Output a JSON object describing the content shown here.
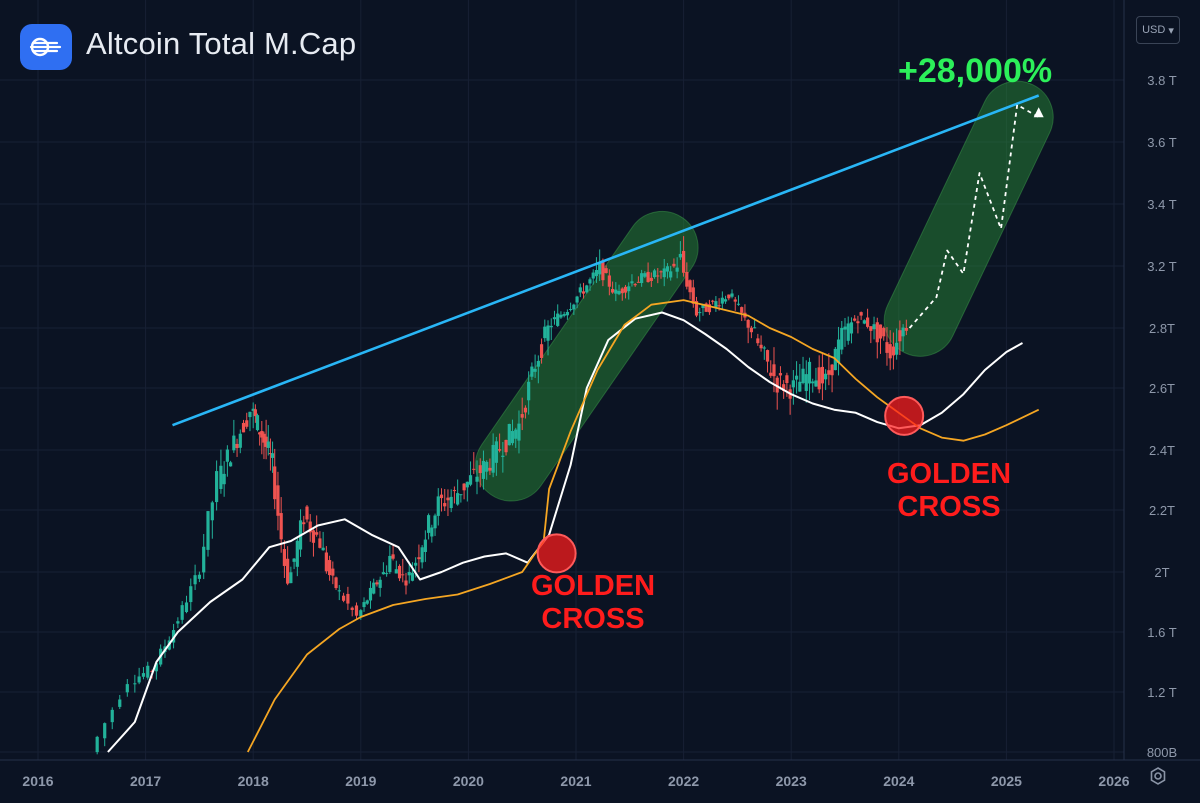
{
  "header": {
    "title": "Altcoin Total M.Cap",
    "currency": "USD",
    "logo_icon": "signal-lines-icon",
    "settings_icon": "gear-icon"
  },
  "chart_data": {
    "type": "candlestick",
    "title": "Altcoin Total M.Cap",
    "xlabel": "",
    "ylabel": "",
    "x_range": [
      2016.0,
      2026.4
    ],
    "x_ticks": [
      "2016",
      "2017",
      "2018",
      "2019",
      "2020",
      "2021",
      "2022",
      "2023",
      "2024",
      "2025",
      "2026"
    ],
    "x_tick_values": [
      2016,
      2017,
      2018,
      2019,
      2020,
      2021,
      2022,
      2023,
      2024,
      2025,
      2026
    ],
    "y_ticks": [
      "3.8 T",
      "3.6 T",
      "3.4 T",
      "3.2 T",
      "2.8T",
      "2.6T",
      "2.4T",
      "2.2T",
      "2T",
      "1.6 T",
      "1.2 T",
      "800B"
    ],
    "y_tick_values": [
      3.8,
      3.6,
      3.4,
      3.2,
      2.8,
      2.6,
      2.4,
      2.2,
      2.0,
      1.6,
      1.2,
      0.8
    ],
    "colors": {
      "up": "#22b29a",
      "down": "#ef5350",
      "ma_fast": "#ffffff",
      "ma_slow": "#f5a623",
      "trendline": "#29b6f6",
      "channel": "#2e9e3a",
      "projection": "#ffffff",
      "golden_cross": "#ff1c1c",
      "gain": "#2cf05a"
    },
    "series": [
      {
        "name": "Altcoin Total M.Cap",
        "type": "candles",
        "x": [
          2016.55,
          2016.9,
          2017.1,
          2017.3,
          2017.5,
          2017.7,
          2017.85,
          2018.0,
          2018.1,
          2018.2,
          2018.35,
          2018.5,
          2018.65,
          2018.8,
          2019.0,
          2019.15,
          2019.3,
          2019.45,
          2019.6,
          2019.75,
          2019.9,
          2020.05,
          2020.2,
          2020.35,
          2020.5,
          2020.65,
          2020.8,
          2020.95,
          2021.1,
          2021.25,
          2021.4,
          2021.55,
          2021.7,
          2021.85,
          2022.0,
          2022.15,
          2022.3,
          2022.45,
          2022.6,
          2022.75,
          2022.9,
          2023.05,
          2023.2,
          2023.35,
          2023.5,
          2023.65,
          2023.8,
          2023.95,
          2024.1
        ],
        "values": [
          0.8,
          1.28,
          1.35,
          1.62,
          1.95,
          2.3,
          2.42,
          2.53,
          2.45,
          2.35,
          1.95,
          2.18,
          2.1,
          1.9,
          1.7,
          1.9,
          2.05,
          1.95,
          2.1,
          2.22,
          2.25,
          2.3,
          2.35,
          2.42,
          2.48,
          2.68,
          2.83,
          2.93,
          3.05,
          3.18,
          3.02,
          3.1,
          3.13,
          3.15,
          3.22,
          2.9,
          2.95,
          3.02,
          2.85,
          2.72,
          2.62,
          2.6,
          2.65,
          2.62,
          2.77,
          2.87,
          2.8,
          2.72,
          2.82
        ]
      },
      {
        "name": "Moving average (white)",
        "type": "line",
        "x": [
          2016.65,
          2016.9,
          2017.1,
          2017.3,
          2017.6,
          2017.9,
          2018.15,
          2018.35,
          2018.6,
          2018.85,
          2019.1,
          2019.35,
          2019.55,
          2019.75,
          2019.95,
          2020.15,
          2020.35,
          2020.55,
          2020.75,
          2020.95,
          2021.1,
          2021.3,
          2021.55,
          2021.8,
          2022.0,
          2022.2,
          2022.4,
          2022.6,
          2022.8,
          2023.0,
          2023.2,
          2023.4,
          2023.6,
          2023.8,
          2024.0,
          2024.2,
          2024.4,
          2024.6,
          2024.8,
          2025.0,
          2025.15
        ],
        "values": [
          0.8,
          1.0,
          1.4,
          1.6,
          1.8,
          1.95,
          2.08,
          2.1,
          2.15,
          2.17,
          2.12,
          2.08,
          1.95,
          2.0,
          2.03,
          2.05,
          2.06,
          2.03,
          2.12,
          2.35,
          2.6,
          2.76,
          2.86,
          2.9,
          2.85,
          2.78,
          2.73,
          2.67,
          2.62,
          2.58,
          2.55,
          2.53,
          2.52,
          2.49,
          2.47,
          2.48,
          2.52,
          2.58,
          2.66,
          2.72,
          2.75
        ]
      },
      {
        "name": "Moving average (orange)",
        "type": "line",
        "x": [
          2017.95,
          2018.2,
          2018.5,
          2018.8,
          2019.0,
          2019.3,
          2019.6,
          2019.9,
          2020.2,
          2020.5,
          2020.7,
          2020.75,
          2020.95,
          2021.2,
          2021.45,
          2021.7,
          2022.0,
          2022.3,
          2022.6,
          2022.8,
          2023.0,
          2023.2,
          2023.4,
          2023.6,
          2023.8,
          2024.0,
          2024.2,
          2024.4,
          2024.6,
          2024.8,
          2025.0,
          2025.3
        ],
        "values": [
          0.8,
          1.15,
          1.45,
          1.62,
          1.7,
          1.78,
          1.82,
          1.85,
          1.92,
          2.0,
          2.1,
          2.27,
          2.46,
          2.66,
          2.82,
          2.95,
          2.98,
          2.93,
          2.88,
          2.8,
          2.77,
          2.73,
          2.7,
          2.63,
          2.57,
          2.52,
          2.47,
          2.44,
          2.43,
          2.45,
          2.48,
          2.53
        ]
      },
      {
        "name": "Trendline",
        "type": "line",
        "x": [
          2017.25,
          2025.3
        ],
        "values": [
          2.48,
          3.75
        ]
      },
      {
        "name": "Projected path",
        "type": "line",
        "style": "dashed",
        "x": [
          2024.1,
          2024.35,
          2024.45,
          2024.6,
          2024.75,
          2024.95,
          2025.1,
          2025.3
        ],
        "values": [
          2.8,
          3.0,
          3.25,
          3.15,
          3.5,
          3.32,
          3.72,
          3.68
        ]
      }
    ],
    "channels": [
      {
        "name": "Rally channel 2020-2021",
        "from": {
          "x": 2020.4,
          "value": 2.35
        },
        "to": {
          "x": 2021.8,
          "value": 3.26
        }
      },
      {
        "name": "Projected channel 2024-2025",
        "from": {
          "x": 2024.2,
          "value": 2.85
        },
        "to": {
          "x": 2025.1,
          "value": 3.68
        }
      }
    ],
    "annotations": {
      "gain": "+28,000%",
      "golden_cross_1": {
        "x": 2020.82,
        "value": 2.06,
        "text_line1": "GOLDEN",
        "text_line2": "CROSS"
      },
      "golden_cross_2": {
        "x": 2024.05,
        "value": 2.51,
        "text_line1": "GOLDEN",
        "text_line2": "CROSS"
      }
    }
  }
}
